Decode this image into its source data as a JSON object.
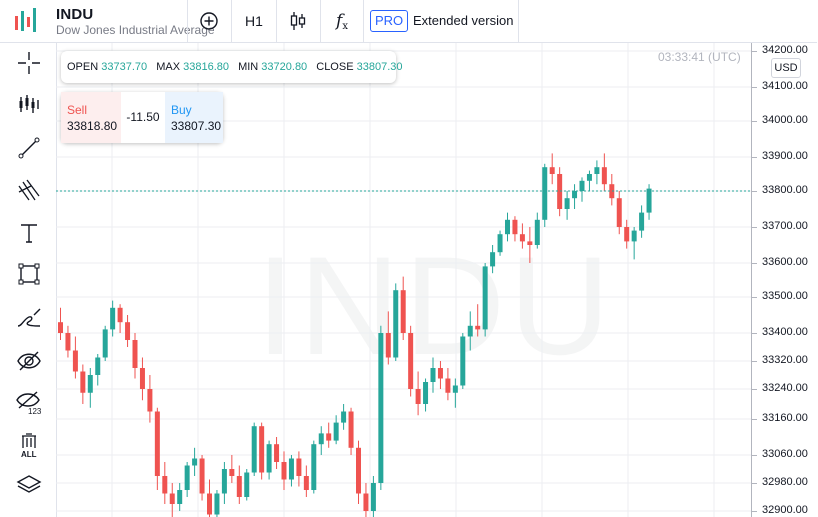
{
  "header": {
    "symbol": "INDU",
    "symbol_name": "Dow Jones Industrial Average",
    "timeframe": "H1",
    "pro_badge": "PRO",
    "extended_label": "Extended version",
    "colors": {
      "accent": "#2962ff",
      "up": "#26a69a",
      "down": "#ef5350"
    }
  },
  "toolbar": {
    "icons": [
      "add-circle-icon",
      "candlestick-type-icon",
      "indicators-fx-icon"
    ]
  },
  "sidebar": {
    "tools": [
      "crosshair-icon",
      "candles-icon",
      "trend-line-icon",
      "fibonacci-icon",
      "text-icon",
      "rectangle-icon",
      "brush-icon",
      "hide-drawings-icon",
      "hide-indicators-icon",
      "remove-all-icon",
      "layers-icon"
    ],
    "remove_all_label": "ALL",
    "indicators_label": "123"
  },
  "ohlc": {
    "open_label": "OPEN",
    "open": "33737.70",
    "max_label": "MAX",
    "max": "33816.80",
    "min_label": "MIN",
    "min": "33720.80",
    "close_label": "CLOSE",
    "close": "33807.30"
  },
  "trade": {
    "sell_label": "Sell",
    "sell_price": "33818.80",
    "spread": "-11.50",
    "buy_label": "Buy",
    "buy_price": "33807.30"
  },
  "clock": "03:33:41 (UTC)",
  "currency": "USD",
  "watermark": "INDU",
  "chart_data": {
    "type": "candlestick",
    "y_ticks": [
      "34200.00",
      "34100.00",
      "34000.00",
      "33900.00",
      "33800.00",
      "33700.00",
      "33600.00",
      "33500.00",
      "33400.00",
      "33320.00",
      "33240.00",
      "33160.00",
      "33060.00",
      "32980.00",
      "32900.00"
    ],
    "current_price": 33800,
    "grid": true,
    "candles": [
      [
        33430,
        33470,
        33380,
        33400
      ],
      [
        33400,
        33420,
        33330,
        33350
      ],
      [
        33350,
        33390,
        33270,
        33290
      ],
      [
        33290,
        33310,
        33200,
        33230
      ],
      [
        33230,
        33300,
        33190,
        33280
      ],
      [
        33280,
        33340,
        33250,
        33330
      ],
      [
        33330,
        33420,
        33320,
        33410
      ],
      [
        33410,
        33490,
        33390,
        33470
      ],
      [
        33470,
        33480,
        33400,
        33430
      ],
      [
        33430,
        33450,
        33360,
        33380
      ],
      [
        33380,
        33400,
        33270,
        33300
      ],
      [
        33300,
        33330,
        33210,
        33240
      ],
      [
        33240,
        33280,
        33150,
        33180
      ],
      [
        33180,
        33190,
        32960,
        33000
      ],
      [
        33000,
        33040,
        32920,
        32950
      ],
      [
        32950,
        32980,
        32880,
        32920
      ],
      [
        32920,
        32980,
        32900,
        32960
      ],
      [
        32960,
        33040,
        32940,
        33030
      ],
      [
        33030,
        33080,
        33000,
        33050
      ],
      [
        33050,
        33060,
        32930,
        32950
      ],
      [
        32950,
        32990,
        32870,
        32890
      ],
      [
        32890,
        32960,
        32870,
        32950
      ],
      [
        32950,
        33040,
        32920,
        33020
      ],
      [
        33020,
        33060,
        32980,
        33000
      ],
      [
        33000,
        33030,
        32920,
        32940
      ],
      [
        32940,
        33020,
        32930,
        33010
      ],
      [
        33010,
        33150,
        33000,
        33140
      ],
      [
        33140,
        33150,
        32990,
        33010
      ],
      [
        33010,
        33100,
        32990,
        33090
      ],
      [
        33090,
        33110,
        33020,
        33040
      ],
      [
        33040,
        33070,
        32960,
        32990
      ],
      [
        32990,
        33060,
        32970,
        33050
      ],
      [
        33050,
        33070,
        32970,
        33000
      ],
      [
        33000,
        33030,
        32940,
        32960
      ],
      [
        32960,
        33100,
        32950,
        33090
      ],
      [
        33090,
        33140,
        33060,
        33120
      ],
      [
        33120,
        33150,
        33080,
        33100
      ],
      [
        33100,
        33170,
        33090,
        33150
      ],
      [
        33150,
        33200,
        33130,
        33180
      ],
      [
        33180,
        33190,
        33060,
        33080
      ],
      [
        33080,
        33100,
        32920,
        32950
      ],
      [
        32950,
        32980,
        32880,
        32900
      ],
      [
        32900,
        33000,
        32880,
        32980
      ],
      [
        32980,
        33420,
        32960,
        33400
      ],
      [
        33400,
        33460,
        33310,
        33330
      ],
      [
        33330,
        33540,
        33320,
        33520
      ],
      [
        33520,
        33560,
        33380,
        33400
      ],
      [
        33400,
        33420,
        33220,
        33240
      ],
      [
        33240,
        33290,
        33170,
        33200
      ],
      [
        33200,
        33270,
        33180,
        33260
      ],
      [
        33260,
        33330,
        33230,
        33300
      ],
      [
        33300,
        33320,
        33240,
        33270
      ],
      [
        33270,
        33300,
        33210,
        33230
      ],
      [
        33230,
        33270,
        33190,
        33250
      ],
      [
        33250,
        33400,
        33240,
        33390
      ],
      [
        33390,
        33460,
        33350,
        33420
      ],
      [
        33420,
        33480,
        33390,
        33410
      ],
      [
        33410,
        33600,
        33390,
        33590
      ],
      [
        33590,
        33650,
        33570,
        33630
      ],
      [
        33630,
        33690,
        33620,
        33680
      ],
      [
        33680,
        33740,
        33660,
        33720
      ],
      [
        33720,
        33730,
        33660,
        33680
      ],
      [
        33680,
        33710,
        33640,
        33660
      ],
      [
        33660,
        33700,
        33600,
        33650
      ],
      [
        33650,
        33740,
        33640,
        33720
      ],
      [
        33720,
        33880,
        33700,
        33870
      ],
      [
        33870,
        33910,
        33820,
        33850
      ],
      [
        33850,
        33870,
        33730,
        33750
      ],
      [
        33750,
        33800,
        33720,
        33780
      ],
      [
        33780,
        33820,
        33750,
        33800
      ],
      [
        33800,
        33840,
        33770,
        33830
      ],
      [
        33830,
        33860,
        33800,
        33850
      ],
      [
        33850,
        33890,
        33820,
        33870
      ],
      [
        33870,
        33910,
        33800,
        33820
      ],
      [
        33820,
        33850,
        33760,
        33780
      ],
      [
        33780,
        33800,
        33680,
        33700
      ],
      [
        33700,
        33720,
        33640,
        33660
      ],
      [
        33660,
        33700,
        33610,
        33690
      ],
      [
        33690,
        33760,
        33670,
        33740
      ],
      [
        33740,
        33820,
        33720,
        33807
      ]
    ]
  }
}
